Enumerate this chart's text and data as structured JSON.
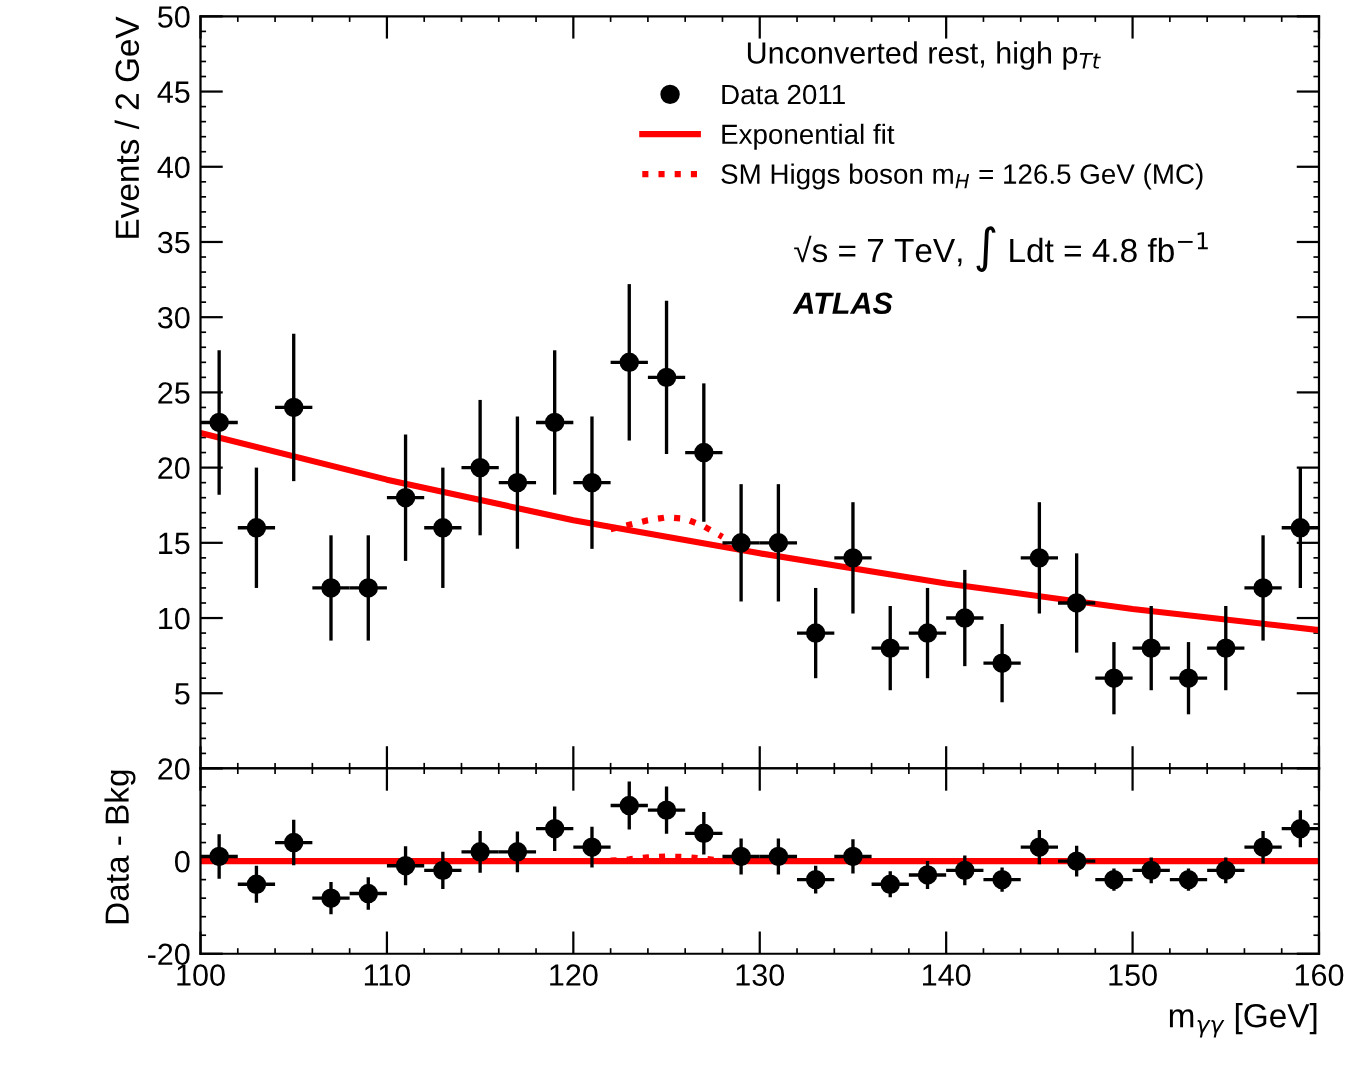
{
  "chart_data": [
    {
      "type": "scatter",
      "ylabel": "Events / 2 GeV",
      "xlim": [
        100,
        160
      ],
      "xticks": [
        100,
        110,
        120,
        130,
        140,
        150,
        160
      ],
      "ylim": [
        0,
        50
      ],
      "yticks": [
        {
          "value": 0,
          "label": null
        },
        5,
        10,
        15,
        20,
        25,
        30,
        35,
        40,
        45,
        50
      ],
      "tick_labels": "y",
      "grid": false,
      "legend": "top right",
      "legend_title": "Unconverted rest, high p$_{Tt}$",
      "annotations": [
        "√s = 7 TeV, ∫ Ldt = 4.8 fb$^{−1}$",
        "ATLAS"
      ],
      "series": [
        {
          "name": "Data 2011",
          "marker": "circle",
          "color": "#000000",
          "x": [
            101,
            103,
            105,
            107,
            109,
            111,
            113,
            115,
            117,
            119,
            121,
            123,
            125,
            127,
            129,
            131,
            133,
            135,
            137,
            139,
            141,
            143,
            145,
            147,
            149,
            151,
            153,
            155,
            157,
            159
          ],
          "values": [
            23,
            16,
            24,
            12,
            12,
            18,
            16,
            20,
            19,
            23,
            19,
            27,
            26,
            21,
            15,
            15,
            9,
            14,
            8,
            9,
            10,
            7,
            14,
            11,
            6,
            8,
            6,
            8,
            12,
            16
          ],
          "errors": [
            4.8,
            4,
            4.9,
            3.5,
            3.5,
            4.2,
            4,
            4.5,
            4.4,
            4.8,
            4.4,
            5.2,
            5.1,
            4.6,
            3.9,
            3.9,
            3,
            3.7,
            2.8,
            3,
            3.2,
            2.6,
            3.7,
            3.3,
            2.4,
            2.8,
            2.4,
            2.8,
            3.5,
            4
          ],
          "xerrors": [
            1,
            1,
            1,
            1,
            1,
            1,
            1,
            1,
            1,
            1,
            1,
            1,
            1,
            1,
            1,
            1,
            1,
            1,
            1,
            1,
            1,
            1,
            1,
            1,
            1,
            1,
            1,
            1,
            1,
            1
          ]
        },
        {
          "name": "Exponential fit",
          "type": "line",
          "line_style": "solid",
          "marker": "none",
          "color": "#ff0000",
          "x": [
            100,
            110,
            120,
            130,
            140,
            150,
            160
          ],
          "values": [
            22.3,
            19.2,
            16.5,
            14.3,
            12.3,
            10.6,
            9.2
          ]
        },
        {
          "name": "SM Higgs boson m$_{H}$ = 126.5 GeV (MC)",
          "type": "line",
          "line_style": "dotted",
          "marker": "none",
          "color": "#ff0000",
          "x": [
            122,
            123,
            124,
            125,
            126,
            127,
            128
          ],
          "values": [
            15.9,
            16.2,
            16.5,
            16.7,
            16.6,
            16.1,
            15.4
          ]
        }
      ]
    },
    {
      "type": "scatter",
      "ylabel": "Data - Bkg",
      "xlabel": "m$_{γγ}$ [GeV]",
      "xlim": [
        100,
        160
      ],
      "xticks": [
        100,
        110,
        120,
        130,
        140,
        150,
        160
      ],
      "ylim": [
        -20,
        20
      ],
      "yticks": [
        -20,
        0,
        20
      ],
      "grid": false,
      "series": [
        {
          "marker": "circle",
          "color": "#000000",
          "x": [
            101,
            103,
            105,
            107,
            109,
            111,
            113,
            115,
            117,
            119,
            121,
            123,
            125,
            127,
            129,
            131,
            133,
            135,
            137,
            139,
            141,
            143,
            145,
            147,
            149,
            151,
            153,
            155,
            157,
            159
          ],
          "values": [
            1,
            -5,
            4,
            -8,
            -7,
            -1,
            -2,
            2,
            2,
            7,
            3,
            12,
            11,
            6,
            1,
            1,
            -4,
            1,
            -5,
            -3,
            -2,
            -4,
            3,
            0,
            -4,
            -2,
            -4,
            -2,
            3,
            7
          ],
          "errors": [
            4.8,
            4,
            4.9,
            3.5,
            3.5,
            4.2,
            4,
            4.5,
            4.4,
            4.8,
            4.4,
            5.2,
            5.1,
            4.6,
            3.9,
            3.9,
            3,
            3.7,
            2.8,
            3,
            3.2,
            2.6,
            3.7,
            3.3,
            2.4,
            2.8,
            2.4,
            2.8,
            3.5,
            4
          ],
          "xerrors": [
            1,
            1,
            1,
            1,
            1,
            1,
            1,
            1,
            1,
            1,
            1,
            1,
            1,
            1,
            1,
            1,
            1,
            1,
            1,
            1,
            1,
            1,
            1,
            1,
            1,
            1,
            1,
            1,
            1,
            1
          ]
        },
        {
          "type": "line",
          "line_style": "solid",
          "marker": "none",
          "color": "#ff0000",
          "x": [
            100,
            160
          ],
          "values": [
            0,
            0
          ]
        },
        {
          "type": "line",
          "line_style": "dotted",
          "marker": "none",
          "color": "#ff0000",
          "x": [
            122,
            123,
            124,
            125,
            126,
            127,
            128
          ],
          "values": [
            0.1,
            0.4,
            0.8,
            1.0,
            0.9,
            0.5,
            0.1
          ]
        }
      ]
    }
  ]
}
